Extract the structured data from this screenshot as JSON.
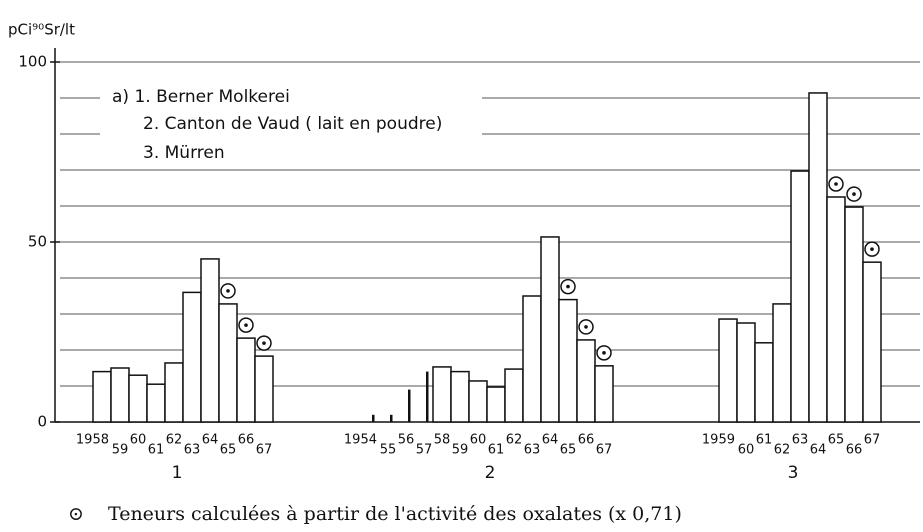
{
  "chart_data": {
    "type": "bar",
    "ylabel": "pCi⁹⁰Sr/lt",
    "ylim": [
      0,
      100
    ],
    "yticks": [
      0,
      50,
      100
    ],
    "grid": true,
    "grid_lines": [
      10,
      20,
      30,
      40,
      50,
      60,
      70,
      80,
      90,
      100
    ],
    "color": "#ffffff",
    "legend": [
      "a) 1. Berner Molkerei",
      "2. Canton de Vaud ( lait en poudre)",
      "3. Mürren"
    ],
    "footnote_symbol": "⊙",
    "footnote": "Teneurs calculées à partir de l'activité des oxalates (x 0,71)",
    "groups": [
      {
        "name": "1",
        "categories": [
          "1958",
          "59",
          "60",
          "61",
          "62",
          "63",
          "64",
          "65",
          "66",
          "67"
        ],
        "values": [
          14,
          15,
          13,
          10.5,
          16.4,
          36,
          45.3,
          32.8,
          23.3,
          18.3
        ],
        "oxalate": [
          false,
          false,
          false,
          false,
          false,
          false,
          false,
          true,
          true,
          true
        ],
        "thin": [
          false,
          false,
          false,
          false,
          false,
          false,
          false,
          false,
          false,
          false
        ]
      },
      {
        "name": "2",
        "categories": [
          "1954",
          "55",
          "56",
          "57",
          "58",
          "59",
          "60",
          "61",
          "62",
          "63",
          "64",
          "65",
          "66",
          "67"
        ],
        "values": [
          2,
          2,
          9,
          14,
          15.3,
          14,
          11.4,
          9.7,
          14.7,
          35,
          51.4,
          34,
          22.8,
          15.6
        ],
        "oxalate": [
          false,
          false,
          false,
          false,
          false,
          false,
          false,
          false,
          false,
          false,
          false,
          true,
          true,
          true
        ],
        "thin": [
          true,
          true,
          true,
          true,
          false,
          false,
          false,
          false,
          false,
          false,
          false,
          false,
          false,
          false
        ]
      },
      {
        "name": "3",
        "categories": [
          "1959",
          "60",
          "61",
          "62",
          "63",
          "64",
          "65",
          "66",
          "67"
        ],
        "values": [
          28.6,
          27.5,
          22,
          32.8,
          69.7,
          91.4,
          62.5,
          59.7,
          44.4
        ],
        "oxalate": [
          false,
          false,
          false,
          false,
          false,
          false,
          true,
          true,
          true
        ],
        "thin": [
          false,
          false,
          false,
          false,
          false,
          false,
          false,
          false,
          false
        ]
      }
    ]
  }
}
